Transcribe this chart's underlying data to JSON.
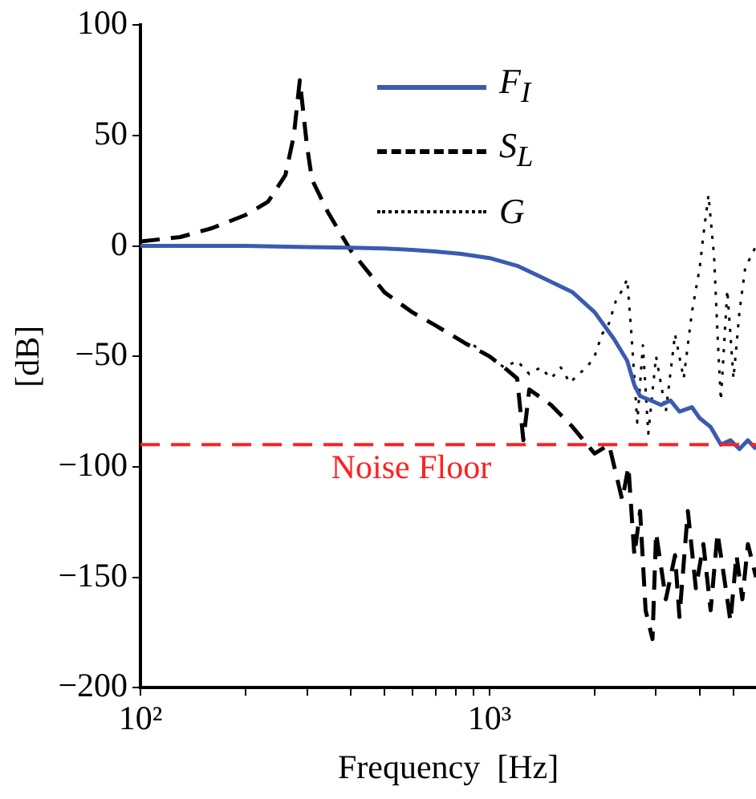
{
  "chart_data": {
    "type": "line",
    "xlabel": "Frequency  [Hz]",
    "ylabel": "[dB]",
    "log": "x",
    "grid": false,
    "legend": "top",
    "marker": "none",
    "xlim": [
      100,
      5800
    ],
    "ylim": [
      -200,
      100
    ],
    "xticks": [
      {
        "value": 100,
        "label": "10²"
      },
      {
        "value": 200,
        "label": null
      },
      {
        "value": 300,
        "label": null
      },
      {
        "value": 400,
        "label": null
      },
      {
        "value": 500,
        "label": null
      },
      {
        "value": 600,
        "label": null
      },
      {
        "value": 700,
        "label": null
      },
      {
        "value": 800,
        "label": null
      },
      {
        "value": 900,
        "label": null
      },
      {
        "value": 1000,
        "label": "10³"
      },
      {
        "value": 2000,
        "label": null
      },
      {
        "value": 3000,
        "label": null
      },
      {
        "value": 4000,
        "label": null
      },
      {
        "value": 5000,
        "label": null
      }
    ],
    "yticks": [
      -200,
      -150,
      -100,
      -50,
      0,
      50,
      100
    ],
    "ref_lines": [
      {
        "axis": "y",
        "value": -90,
        "label": "Noise Floor",
        "color": "#ff2020",
        "line_style": "dashed"
      }
    ],
    "series": [
      {
        "name": "F$_{I}$",
        "color": "#3a5bb0",
        "line_style": "solid",
        "x": [
          100,
          150,
          200,
          300,
          400,
          500,
          600,
          700,
          830,
          1000,
          1200,
          1400,
          1730,
          2000,
          2270,
          2480,
          2600,
          2700,
          2900,
          3100,
          3300,
          3500,
          3800,
          4000,
          4300,
          4600,
          4900,
          5200,
          5500,
          5800
        ],
        "values": [
          0,
          0,
          0,
          -0.5,
          -0.8,
          -1.2,
          -1.8,
          -2.5,
          -3.6,
          -5.5,
          -9,
          -14,
          -21,
          -30,
          -42,
          -52,
          -63,
          -68,
          -70,
          -72,
          -70,
          -75,
          -73,
          -78,
          -82,
          -90,
          -88,
          -92,
          -88,
          -92
        ]
      },
      {
        "name": "S$_{L}$",
        "color": "#000000",
        "line_style": "dashed",
        "x": [
          100,
          130,
          160,
          200,
          232,
          260,
          275,
          286,
          300,
          310,
          345,
          400,
          450,
          500,
          600,
          700,
          850,
          1000,
          1100,
          1200,
          1250,
          1300,
          1500,
          1730,
          2000,
          2200,
          2400,
          2500,
          2600,
          2700,
          2800,
          2930,
          3000,
          3200,
          3400,
          3500,
          3700,
          3900,
          4100,
          4300,
          4500,
          4700,
          4900,
          5100,
          5300,
          5500,
          5800
        ],
        "values": [
          2,
          4,
          8,
          14,
          20,
          32,
          50,
          75,
          45,
          30,
          15,
          -2,
          -12,
          -21,
          -30,
          -36,
          -44,
          -50,
          -55,
          -60,
          -88,
          -65,
          -72,
          -82,
          -94,
          -90,
          -115,
          -100,
          -140,
          -120,
          -165,
          -178,
          -130,
          -160,
          -140,
          -168,
          -120,
          -155,
          -135,
          -165,
          -130,
          -150,
          -170,
          -140,
          -160,
          -135,
          -150
        ]
      },
      {
        "name": "G",
        "color": "#000000",
        "line_style": "dotted",
        "x": [
          900,
          1000,
          1100,
          1200,
          1300,
          1400,
          1500,
          1600,
          1700,
          1800,
          1900,
          2000,
          2100,
          2200,
          2300,
          2400,
          2480,
          2550,
          2650,
          2750,
          2850,
          3000,
          3200,
          3400,
          3600,
          3800,
          4000,
          4100,
          4240,
          4400,
          4500,
          4600,
          4800,
          5000,
          5200,
          5400,
          5600,
          5800
        ],
        "values": [
          -45,
          -50,
          -55,
          -52,
          -58,
          -55,
          -60,
          -55,
          -62,
          -58,
          -55,
          -50,
          -40,
          -35,
          -25,
          -20,
          -15,
          -40,
          -80,
          -45,
          -85,
          -50,
          -75,
          -40,
          -60,
          -30,
          -10,
          5,
          23,
          -5,
          -40,
          -70,
          -20,
          -60,
          -30,
          -10,
          -5,
          0
        ]
      }
    ]
  }
}
